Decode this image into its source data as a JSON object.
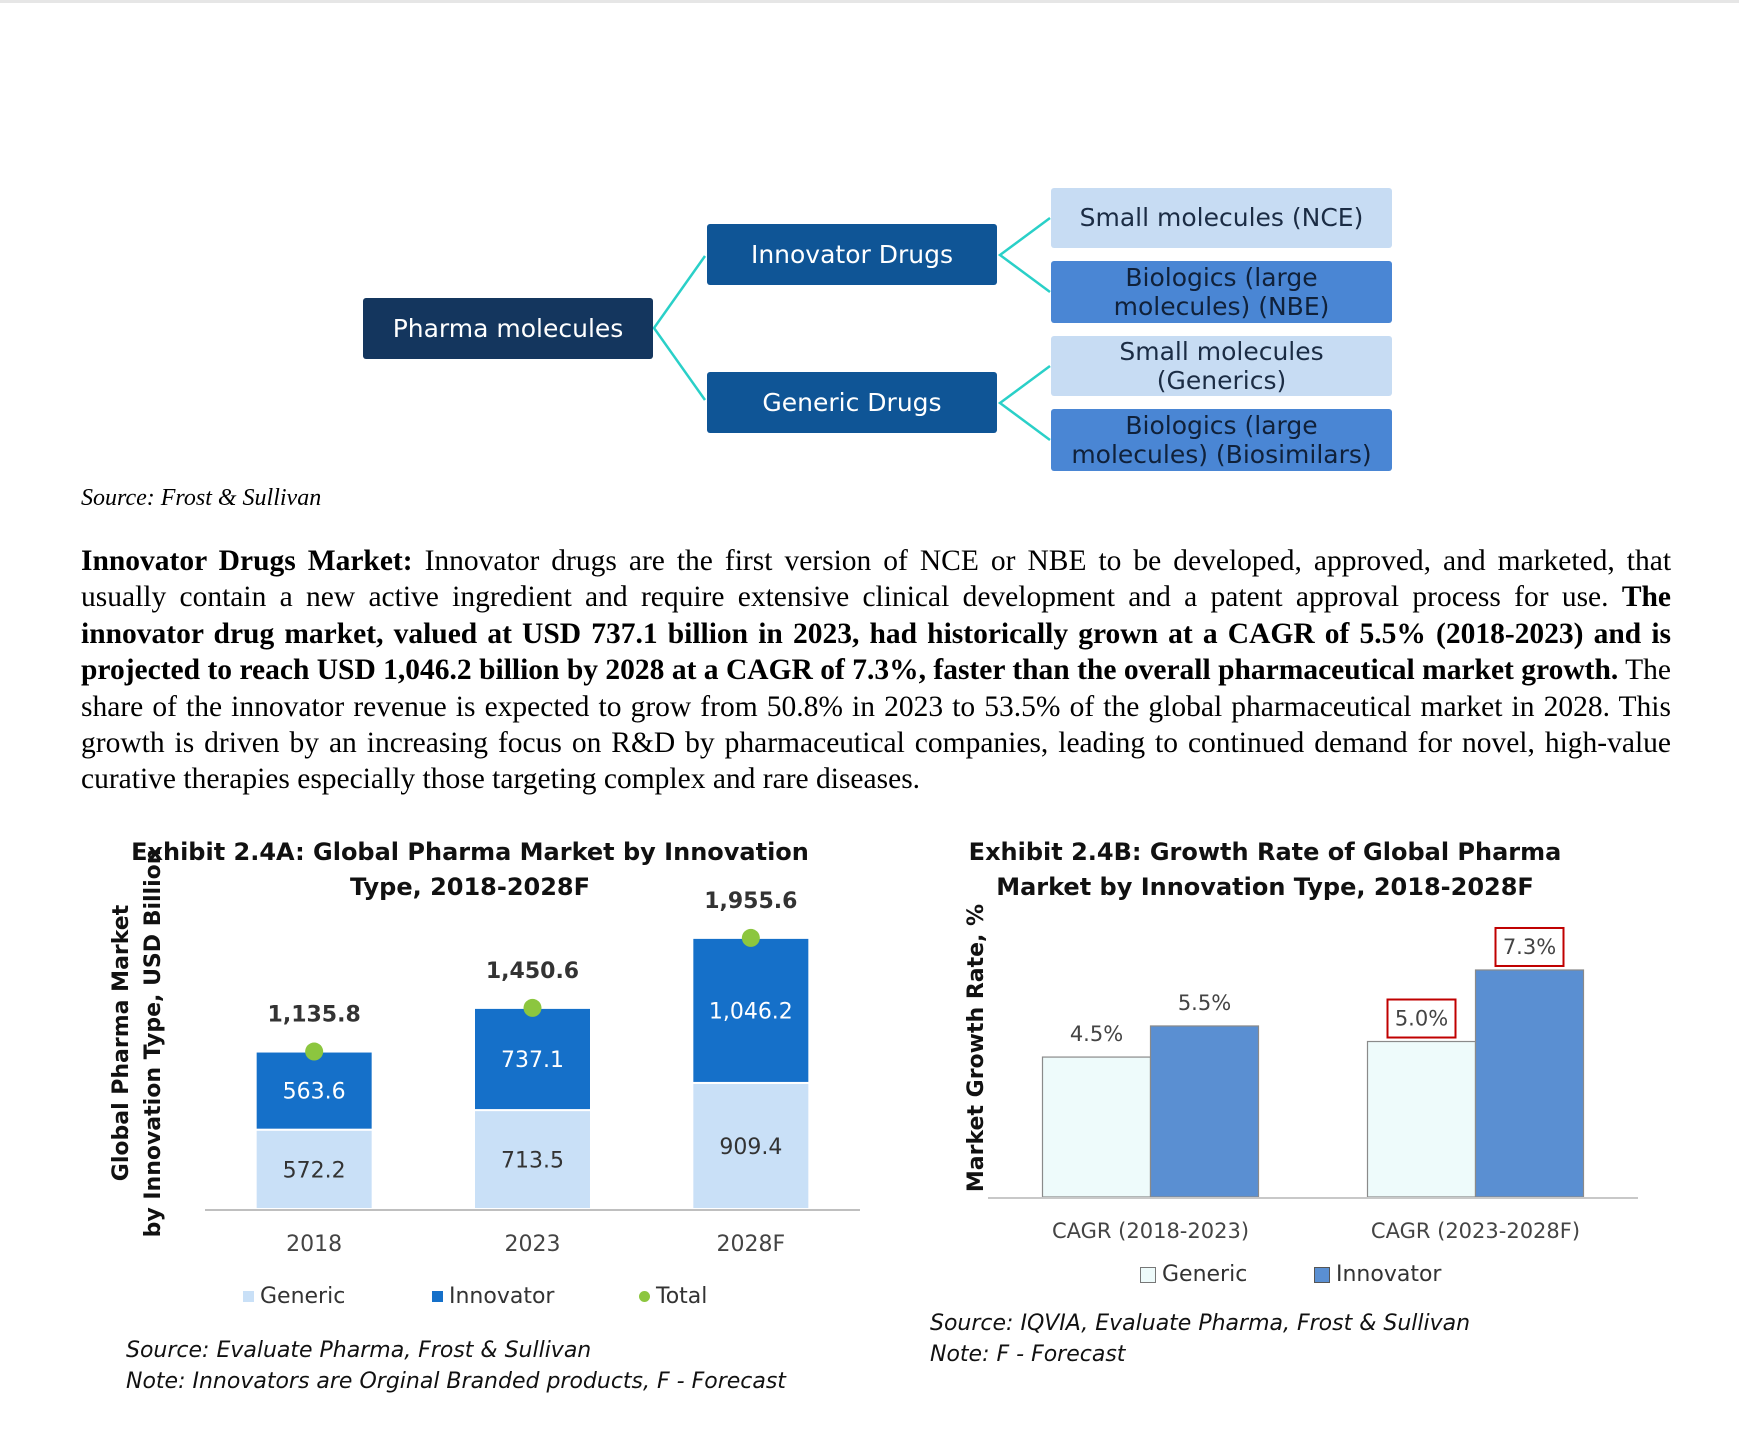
{
  "tree": {
    "root": "Pharma molecules",
    "branches": [
      {
        "label": "Innovator Drugs",
        "children": [
          "Small molecules (NCE)",
          "Biologics (large molecules) (NBE)"
        ]
      },
      {
        "label": "Generic Drugs",
        "children": [
          "Small molecules (Generics)",
          "Biologics (large molecules) (Biosimilars)"
        ]
      }
    ],
    "colors": {
      "root": "#14365e",
      "branch": "#0f5596",
      "leaf_light": "#c7dcf3",
      "leaf_blue": "#4a86d4",
      "connector": "#2ad0c8"
    }
  },
  "source_top": "Source: Frost & Sullivan",
  "paragraph": {
    "lead": "Innovator Drugs Market:",
    "text1": " Innovator drugs are the first version of NCE or NBE to be developed, approved, and marketed, that usually contain a new active ingredient and require extensive clinical development and a patent approval process for use. ",
    "bold": "The innovator drug market, valued at USD 737.1 billion in 2023, had historically grown at a CAGR of 5.5% (2018-2023) and is projected to reach USD 1,046.2 billion by 2028 at a CAGR of 7.3%, faster than the overall pharmaceutical market growth.",
    "text2": " The share of the innovator revenue is expected to grow from 50.8% in 2023 to 53.5% of the global pharmaceutical market in 2028. This growth is driven by an increasing focus on R&D by pharmaceutical companies, leading to continued demand for novel, high-value curative therapies especially those targeting complex and rare diseases."
  },
  "exhibitA": {
    "title_line1": "Exhibit 2.4A: Global Pharma Market by Innovation",
    "title_line2": "Type, 2018-2028F",
    "source": "Source: Evaluate Pharma, Frost & Sullivan",
    "note": "Note: Innovators are Orginal Branded products, F - Forecast",
    "legend": [
      "Generic",
      "Innovator",
      "Total"
    ]
  },
  "exhibitB": {
    "title_line1": "Exhibit 2.4B: Growth Rate of Global Pharma",
    "title_line2": "Market by Innovation Type, 2018-2028F",
    "source": "Source: IQVIA, Evaluate Pharma, Frost & Sullivan",
    "note": "Note:  F - Forecast",
    "legend": [
      "Generic",
      "Innovator"
    ]
  },
  "chart_data": [
    {
      "type": "bar",
      "stacked": true,
      "ylabel_line1": "Global Pharma Market",
      "ylabel_line2": "by Innovation Type, USD Billion",
      "categories": [
        "2018",
        "2023",
        "2028F"
      ],
      "series": [
        {
          "name": "Generic",
          "values": [
            572.2,
            713.5,
            909.4
          ],
          "labels": [
            "572.2",
            "713.5",
            "909.4"
          ],
          "color": "#c9e0f7"
        },
        {
          "name": "Innovator",
          "values": [
            563.6,
            737.1,
            1046.2
          ],
          "labels": [
            "563.6",
            "737.1",
            "1,046.2"
          ],
          "color": "#1570c9"
        },
        {
          "name": "Total",
          "values": [
            1135.8,
            1450.6,
            1955.6
          ],
          "labels": [
            "1,135.8",
            "1,450.6",
            "1,955.6"
          ],
          "color": "#8cc63f"
        }
      ],
      "ylim": [
        0,
        2200
      ]
    },
    {
      "type": "bar",
      "ylabel": "Market Growth Rate, %",
      "categories": [
        "CAGR (2018-2023)",
        "CAGR (2023-2028F)"
      ],
      "series": [
        {
          "name": "Generic",
          "values": [
            4.5,
            5.0
          ],
          "labels": [
            "4.5%",
            "5.0%"
          ],
          "color": "#eefbfb"
        },
        {
          "name": "Innovator",
          "values": [
            5.5,
            7.3
          ],
          "labels": [
            "5.5%",
            "7.3%"
          ],
          "color": "#5a8fd2"
        }
      ],
      "highlighted_labels": [
        "5.0%",
        "7.3%"
      ],
      "highlight_color": "#c00000",
      "ylim": [
        0,
        8.2
      ]
    }
  ]
}
